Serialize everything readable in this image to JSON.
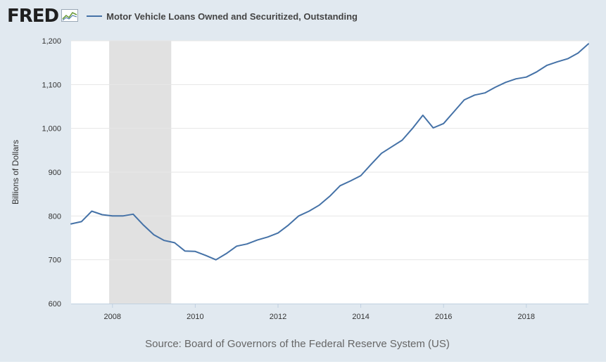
{
  "header": {
    "logo_text": "FRED",
    "logo_icon": "chart-line-icon",
    "legend_label": "Motor Vehicle Loans Owned and Securitized, Outstanding"
  },
  "footer": {
    "source": "Source: Board of Governors of the Federal Reserve System (US)"
  },
  "colors": {
    "series": "#4572a7",
    "recession": "#e1e1e1",
    "background": "#e1e9f0",
    "plot": "#ffffff",
    "grid": "#e6e6e6"
  },
  "chart_data": {
    "type": "line",
    "title": "",
    "xlabel": "",
    "ylabel": "Billions of Dollars",
    "ylim": [
      600,
      1200
    ],
    "yticks": [
      600,
      700,
      800,
      900,
      1000,
      1100,
      1200
    ],
    "ytick_labels": [
      "600",
      "700",
      "800",
      "900",
      "1,000",
      "1,100",
      "1,200"
    ],
    "xlim": [
      2007.0,
      2019.5
    ],
    "xticks": [
      2008,
      2010,
      2012,
      2014,
      2016,
      2018
    ],
    "xtick_labels": [
      "2008",
      "2010",
      "2012",
      "2014",
      "2016",
      "2018"
    ],
    "grid": true,
    "legend": "top-left",
    "recessions": [
      [
        2007.92,
        2009.42
      ]
    ],
    "series": [
      {
        "name": "Motor Vehicle Loans Owned and Securitized, Outstanding",
        "x": [
          2007.0,
          2007.25,
          2007.5,
          2007.75,
          2008.0,
          2008.25,
          2008.5,
          2008.75,
          2009.0,
          2009.25,
          2009.5,
          2009.75,
          2010.0,
          2010.25,
          2010.5,
          2010.75,
          2011.0,
          2011.25,
          2011.5,
          2011.75,
          2012.0,
          2012.25,
          2012.5,
          2012.75,
          2013.0,
          2013.25,
          2013.5,
          2013.75,
          2014.0,
          2014.25,
          2014.5,
          2014.75,
          2015.0,
          2015.25,
          2015.5,
          2015.75,
          2016.0,
          2016.25,
          2016.5,
          2016.75,
          2017.0,
          2017.25,
          2017.5,
          2017.75,
          2018.0,
          2018.25,
          2018.5,
          2018.75,
          2019.0,
          2019.25,
          2019.5
        ],
        "y": [
          782,
          787,
          811,
          803,
          800,
          800,
          804,
          779,
          757,
          744,
          739,
          720,
          719,
          710,
          700,
          714,
          731,
          736,
          745,
          752,
          761,
          779,
          800,
          811,
          825,
          845,
          869,
          880,
          892,
          918,
          943,
          958,
          973,
          1000,
          1030,
          1001,
          1011,
          1038,
          1065,
          1076,
          1081,
          1094,
          1105,
          1113,
          1117,
          1129,
          1144,
          1152,
          1159,
          1172,
          1193
        ]
      }
    ]
  }
}
